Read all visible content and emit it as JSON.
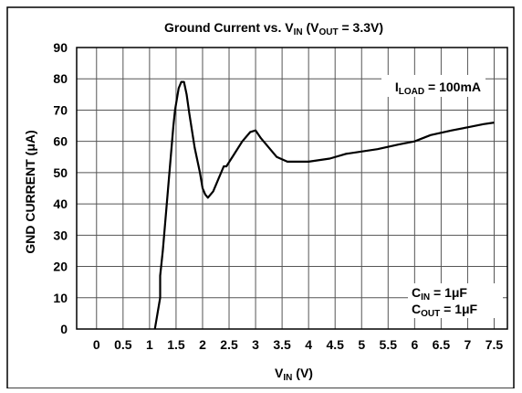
{
  "chart_data": {
    "type": "line",
    "title": {
      "prefix": "Ground Current vs. V",
      "sub1": "IN",
      "mid": " (V",
      "sub2": "OUT",
      "suffix": " = 3.3V)"
    },
    "ylabel": "GND CURRENT (μA)",
    "xlabel": {
      "main": "V",
      "sub": "IN",
      "suffix": " (V)"
    },
    "xlim": [
      -0.375,
      7.75
    ],
    "ylim": [
      0,
      90
    ],
    "x_ticks": [
      0,
      0.5,
      1,
      1.5,
      2,
      2.5,
      3,
      3.5,
      4,
      4.5,
      5,
      5.5,
      6,
      6.5,
      7,
      7.5
    ],
    "x_tick_labels": [
      "0",
      "0.5",
      "1",
      "1.5",
      "2",
      "2.5",
      "3",
      "3.5",
      "4",
      "4.5",
      "5",
      "5.5",
      "6",
      "6.5",
      "7",
      "7.5"
    ],
    "y_ticks": [
      0,
      10,
      20,
      30,
      40,
      50,
      60,
      70,
      80,
      90
    ],
    "y_tick_labels": [
      "0",
      "10",
      "20",
      "30",
      "40",
      "50",
      "60",
      "70",
      "80",
      "90"
    ],
    "grid": true,
    "annotations": {
      "load": {
        "main": "I",
        "sub": "LOAD",
        "suffix": " = 100mA"
      },
      "cin": {
        "main": "C",
        "sub": "IN",
        "suffix": " = 1μF"
      },
      "cout": {
        "main": "C",
        "sub": "OUT",
        "suffix": " = 1μF"
      }
    },
    "series": [
      {
        "x": [
          1.1,
          1.15,
          1.2,
          1.2,
          1.25,
          1.35,
          1.45,
          1.48,
          1.55,
          1.6,
          1.65,
          1.7,
          1.75,
          1.85,
          1.95,
          2.0,
          2.05,
          2.1,
          2.2,
          2.3,
          2.4,
          2.45,
          2.6,
          2.75,
          2.9,
          3.0,
          3.1,
          3.3,
          3.4,
          3.6,
          4.0,
          4.4,
          4.7,
          5.3,
          5.7,
          6.0,
          6.3,
          6.7,
          7.0,
          7.3,
          7.5
        ],
        "y": [
          0,
          5,
          10,
          17,
          25,
          45,
          65,
          70,
          77,
          79,
          79,
          75,
          69,
          58,
          50,
          45,
          43,
          42,
          44,
          48,
          52,
          52,
          56,
          60,
          63,
          63.5,
          61,
          57,
          55,
          53.5,
          53.5,
          54.5,
          56,
          57.5,
          59,
          60,
          62,
          63.5,
          64.5,
          65.5,
          66
        ]
      }
    ]
  }
}
